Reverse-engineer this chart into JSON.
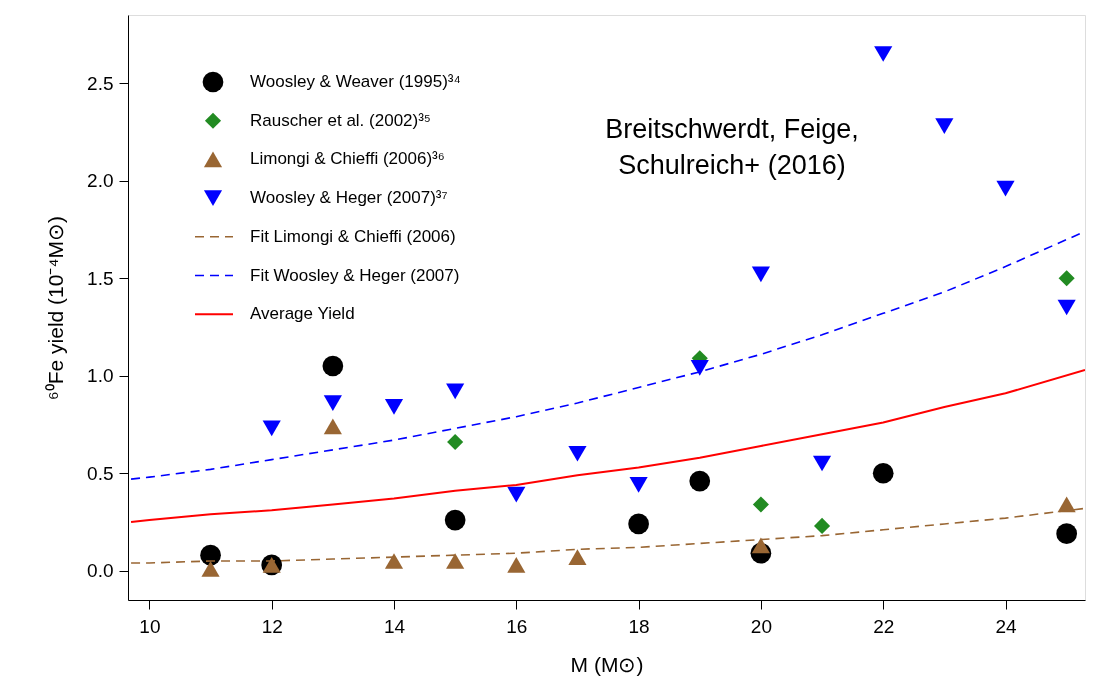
{
  "chart_data": {
    "type": "scatter",
    "xlabel": "M  (M⊙)",
    "ylabel": "⁶⁰Fe yield  (10⁻⁴M⊙)",
    "xlim": [
      9.65,
      25.3
    ],
    "ylim": [
      -0.15,
      2.85
    ],
    "xticks": [
      10,
      12,
      14,
      16,
      18,
      20,
      22,
      24
    ],
    "yticks": [
      {
        "value": 0,
        "label": "0.0"
      },
      0.5,
      {
        "value": 1,
        "label": "1.0"
      },
      1.5,
      {
        "value": 2,
        "label": "2.0"
      },
      2.5
    ],
    "grid": false,
    "legend": "top left",
    "annotations": [
      "Breitschwerdt, Feige,\nSchulreich+ (2016)"
    ],
    "series": [
      {
        "name": "Woosley & Weaver (1995)³⁴",
        "marker": "circle",
        "color": "#000000",
        "x": [
          11,
          12,
          13,
          15,
          18,
          19,
          20,
          22,
          25
        ],
        "values": [
          0.08,
          0.03,
          1.05,
          0.26,
          0.24,
          0.46,
          0.09,
          0.5,
          0.19
        ]
      },
      {
        "name": "Rauscher et al. (2002)³⁵",
        "marker": "diamond",
        "color": "#228b22",
        "x": [
          15,
          19,
          20,
          21,
          25
        ],
        "values": [
          0.66,
          1.09,
          0.34,
          0.23,
          1.5
        ]
      },
      {
        "name": "Limongi & Chieffi (2006)³⁶",
        "marker": "triangle",
        "color": "#996633",
        "x": [
          11,
          12,
          13,
          14,
          15,
          16,
          17,
          20,
          25
        ],
        "values": [
          0.01,
          0.03,
          0.74,
          0.05,
          0.05,
          0.03,
          0.07,
          0.13,
          0.34
        ]
      },
      {
        "name": "Woosley & Heger (2007)³⁷",
        "marker": "triangle-down",
        "color": "#0000ff",
        "x": [
          12,
          13,
          14,
          15,
          16,
          17,
          18,
          19,
          20,
          21,
          22,
          23,
          24,
          25
        ],
        "values": [
          0.73,
          0.86,
          0.84,
          0.92,
          0.39,
          0.6,
          0.44,
          1.04,
          1.52,
          0.55,
          2.65,
          2.28,
          1.96,
          1.35
        ]
      },
      {
        "name": "Fit Limongi & Chieffi (2006)",
        "type": "line",
        "line_style": "dashed",
        "color": "#996633",
        "x": [
          9.7,
          10,
          11,
          12,
          13,
          14,
          15,
          16,
          17,
          18,
          19,
          20,
          21,
          22,
          23,
          24,
          25.3
        ],
        "values": [
          0.04,
          0.04,
          0.05,
          0.05,
          0.06,
          0.07,
          0.08,
          0.09,
          0.11,
          0.12,
          0.14,
          0.16,
          0.18,
          0.21,
          0.24,
          0.27,
          0.32
        ]
      },
      {
        "name": "Fit Woosley & Heger (2007)",
        "type": "line",
        "line_style": "dashed",
        "color": "#0000ff",
        "x": [
          9.7,
          10,
          11,
          12,
          13,
          14,
          15,
          16,
          17,
          18,
          19,
          20,
          21,
          22,
          23,
          24,
          25.3
        ],
        "values": [
          0.47,
          0.48,
          0.52,
          0.57,
          0.62,
          0.67,
          0.73,
          0.79,
          0.86,
          0.94,
          1.02,
          1.11,
          1.21,
          1.32,
          1.43,
          1.56,
          1.74
        ]
      },
      {
        "name": "Average Yield",
        "type": "line",
        "line_style": "solid",
        "color": "#ff0000",
        "x": [
          9.7,
          10,
          11,
          12,
          13,
          14,
          15,
          16,
          17,
          18,
          19,
          20,
          21,
          22,
          23,
          24,
          25.3
        ],
        "values": [
          0.25,
          0.26,
          0.29,
          0.31,
          0.34,
          0.37,
          0.41,
          0.44,
          0.49,
          0.53,
          0.58,
          0.64,
          0.7,
          0.76,
          0.84,
          0.91,
          1.03
        ]
      }
    ]
  }
}
